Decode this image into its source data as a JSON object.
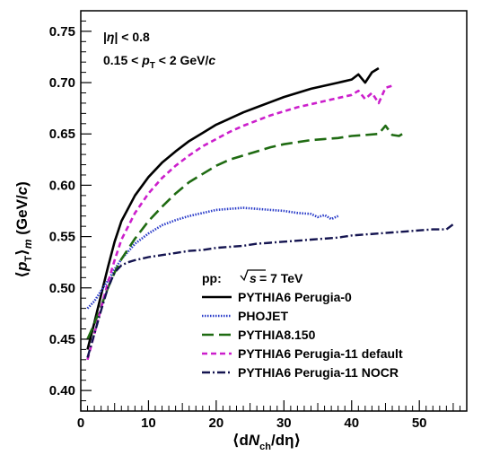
{
  "chart_data": {
    "type": "line",
    "xlabel": "⟨dN_ch/dη⟩",
    "ylabel": "⟨p_T⟩_m (GeV/c)",
    "xlim": [
      0,
      57
    ],
    "ylim": [
      0.38,
      0.77
    ],
    "grid": false,
    "legend_position": "bottom-right",
    "x_ticks": [
      0,
      10,
      20,
      30,
      40,
      50
    ],
    "y_ticks": [
      0.4,
      0.45,
      0.5,
      0.55,
      0.6,
      0.65,
      0.7,
      0.75
    ],
    "annotations": [
      {
        "parts": [
          "|",
          "η",
          "| < 0.8"
        ]
      },
      {
        "parts": [
          "0.15 < ",
          "p",
          "T",
          " < 2 GeV/",
          "c"
        ]
      }
    ],
    "legend_header": {
      "prefix": "pp:",
      "sqrt_var": "s",
      "suffix": " = 7 TeV"
    },
    "series": [
      {
        "name": "PYTHIA6 Perugia-0",
        "color": "#000000",
        "style": "solid",
        "x": [
          1,
          2,
          3,
          4,
          5,
          6,
          8,
          10,
          12,
          14,
          16,
          18,
          20,
          22,
          24,
          26,
          28,
          30,
          32,
          34,
          36,
          38,
          40,
          41,
          42,
          43,
          44
        ],
        "y": [
          0.44,
          0.466,
          0.493,
          0.52,
          0.545,
          0.565,
          0.59,
          0.608,
          0.622,
          0.633,
          0.643,
          0.651,
          0.659,
          0.665,
          0.671,
          0.676,
          0.681,
          0.686,
          0.69,
          0.694,
          0.697,
          0.7,
          0.703,
          0.708,
          0.7,
          0.71,
          0.714
        ]
      },
      {
        "name": "PHOJET",
        "color": "#2a3cc9",
        "style": "dotted",
        "x": [
          1,
          2,
          3,
          4,
          5,
          6,
          8,
          10,
          12,
          14,
          16,
          18,
          20,
          22,
          24,
          26,
          28,
          30,
          32,
          34,
          35,
          36,
          37,
          38
        ],
        "y": [
          0.48,
          0.487,
          0.497,
          0.507,
          0.518,
          0.528,
          0.543,
          0.553,
          0.561,
          0.566,
          0.57,
          0.573,
          0.576,
          0.577,
          0.578,
          0.577,
          0.576,
          0.575,
          0.573,
          0.572,
          0.569,
          0.571,
          0.567,
          0.57
        ]
      },
      {
        "name": "PYTHIA8.150",
        "color": "#1f6b12",
        "style": "dashed",
        "x": [
          1,
          2,
          3,
          4,
          5,
          6,
          8,
          10,
          12,
          14,
          16,
          18,
          20,
          22,
          24,
          26,
          28,
          30,
          32,
          34,
          36,
          38,
          40,
          42,
          44,
          45,
          46,
          47,
          48
        ],
        "y": [
          0.45,
          0.465,
          0.482,
          0.5,
          0.515,
          0.528,
          0.548,
          0.565,
          0.579,
          0.592,
          0.603,
          0.611,
          0.619,
          0.625,
          0.629,
          0.633,
          0.637,
          0.64,
          0.642,
          0.644,
          0.645,
          0.646,
          0.648,
          0.649,
          0.65,
          0.658,
          0.649,
          0.648,
          0.652
        ]
      },
      {
        "name": "PYTHIA6 Perugia-11 default",
        "color": "#cc1fcc",
        "style": "short-dashed",
        "x": [
          1,
          2,
          3,
          4,
          5,
          6,
          8,
          10,
          12,
          14,
          16,
          18,
          20,
          22,
          24,
          26,
          28,
          30,
          32,
          34,
          36,
          38,
          40,
          41,
          42,
          43,
          44,
          45,
          46
        ],
        "y": [
          0.43,
          0.455,
          0.48,
          0.505,
          0.527,
          0.547,
          0.573,
          0.592,
          0.607,
          0.619,
          0.629,
          0.638,
          0.645,
          0.652,
          0.658,
          0.663,
          0.668,
          0.672,
          0.676,
          0.679,
          0.682,
          0.685,
          0.688,
          0.692,
          0.684,
          0.69,
          0.68,
          0.695,
          0.697
        ]
      },
      {
        "name": "PYTHIA6 Perugia-11 NOCR",
        "color": "#141450",
        "style": "dash-dot",
        "x": [
          1,
          2,
          3,
          4,
          5,
          6,
          7,
          8,
          10,
          12,
          14,
          16,
          18,
          20,
          22,
          24,
          26,
          28,
          30,
          32,
          34,
          36,
          38,
          40,
          42,
          44,
          46,
          48,
          50,
          52,
          54,
          55
        ],
        "y": [
          0.432,
          0.455,
          0.478,
          0.5,
          0.515,
          0.522,
          0.525,
          0.527,
          0.53,
          0.532,
          0.534,
          0.536,
          0.537,
          0.539,
          0.54,
          0.541,
          0.543,
          0.544,
          0.545,
          0.546,
          0.547,
          0.548,
          0.549,
          0.551,
          0.552,
          0.553,
          0.554,
          0.555,
          0.556,
          0.557,
          0.557,
          0.562
        ]
      }
    ]
  }
}
